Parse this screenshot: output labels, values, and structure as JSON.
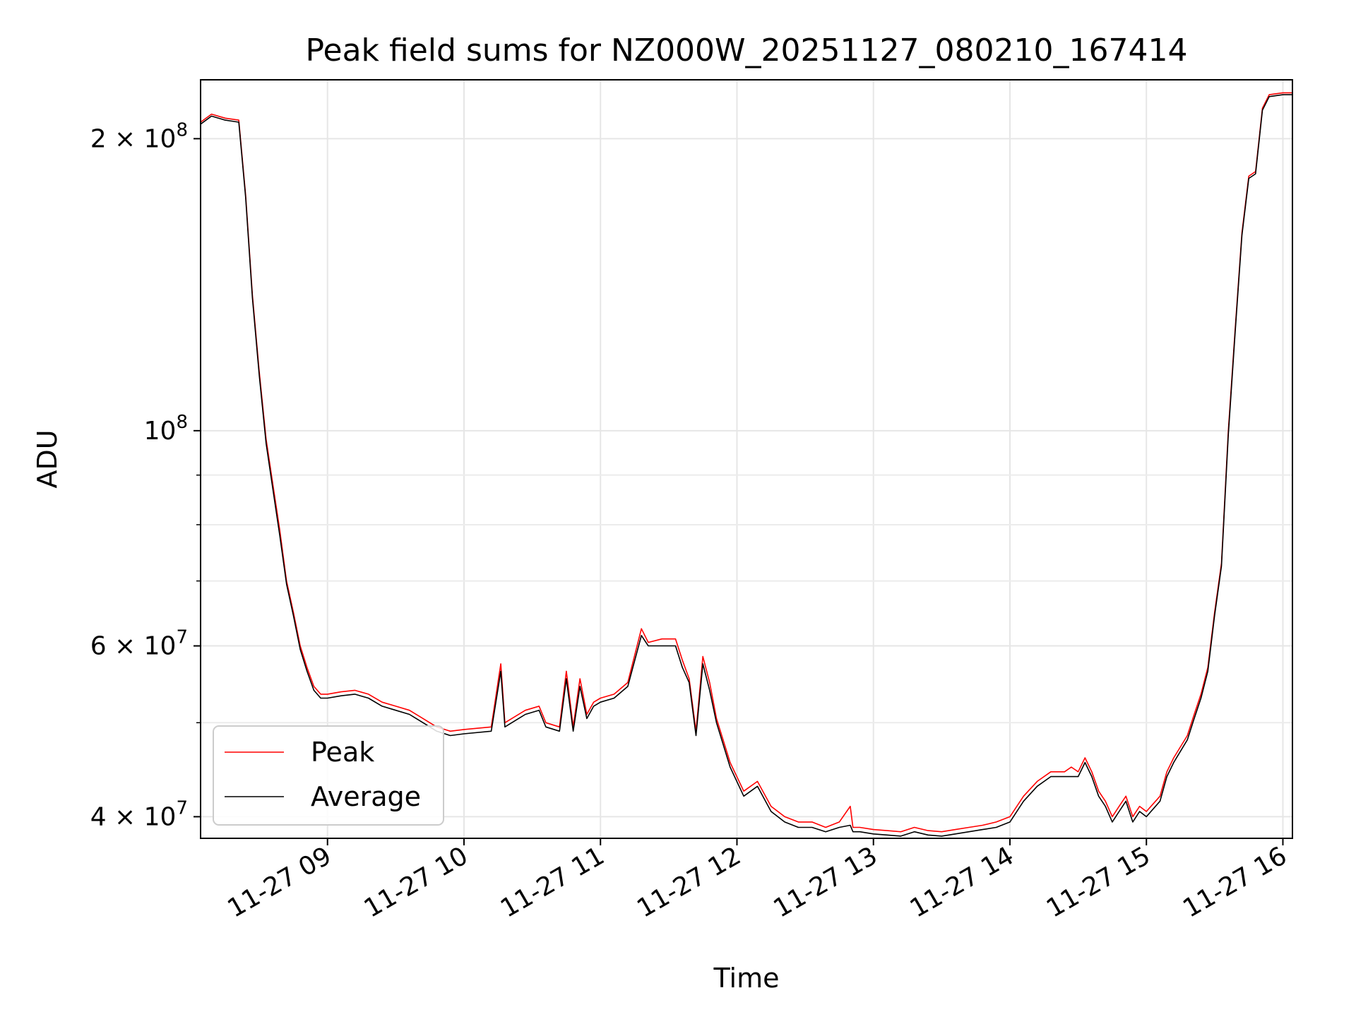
{
  "chart_data": {
    "type": "line",
    "title": "Peak field sums for NZ000W_20251127_080210_167414",
    "xlabel": "Time",
    "ylabel": "ADU",
    "yscale": "log",
    "xlim": [
      8.07,
      16.07
    ],
    "ylim": [
      38000000,
      230000000
    ],
    "grid": true,
    "legend_position": "lower-left",
    "x_ticks": [
      {
        "value": 9,
        "label": "11-27 09"
      },
      {
        "value": 10,
        "label": "11-27 10"
      },
      {
        "value": 11,
        "label": "11-27 11"
      },
      {
        "value": 12,
        "label": "11-27 12"
      },
      {
        "value": 13,
        "label": "11-27 13"
      },
      {
        "value": 14,
        "label": "11-27 14"
      },
      {
        "value": 15,
        "label": "11-27 15"
      },
      {
        "value": 16,
        "label": "11-27 16"
      }
    ],
    "y_major_ticks": [
      {
        "value": 40000000,
        "mantissa": "4",
        "exp": "7"
      },
      {
        "value": 60000000,
        "mantissa": "6",
        "exp": "7"
      },
      {
        "value": 100000000,
        "mantissa": "",
        "exp": "8"
      },
      {
        "value": 200000000,
        "mantissa": "2",
        "exp": "8"
      }
    ],
    "y_minor_ticks": [
      50000000,
      70000000,
      80000000,
      90000000
    ],
    "series": [
      {
        "name": "Peak",
        "color": "#ff0000",
        "x": [
          8.07,
          8.15,
          8.25,
          8.35,
          8.4,
          8.45,
          8.5,
          8.55,
          8.6,
          8.65,
          8.7,
          8.75,
          8.8,
          8.85,
          8.9,
          8.95,
          9.0,
          9.1,
          9.2,
          9.3,
          9.4,
          9.5,
          9.6,
          9.7,
          9.8,
          9.9,
          10.0,
          10.2,
          10.27,
          10.3,
          10.35,
          10.45,
          10.55,
          10.6,
          10.7,
          10.75,
          10.8,
          10.85,
          10.9,
          10.95,
          11.0,
          11.1,
          11.2,
          11.3,
          11.35,
          11.45,
          11.55,
          11.6,
          11.65,
          11.7,
          11.75,
          11.8,
          11.85,
          11.95,
          12.05,
          12.15,
          12.25,
          12.35,
          12.45,
          12.55,
          12.65,
          12.75,
          12.83,
          12.85,
          12.9,
          13.0,
          13.1,
          13.2,
          13.3,
          13.4,
          13.5,
          13.6,
          13.7,
          13.8,
          13.9,
          14.0,
          14.1,
          14.2,
          14.3,
          14.4,
          14.45,
          14.5,
          14.55,
          14.6,
          14.65,
          14.7,
          14.75,
          14.8,
          14.85,
          14.9,
          14.95,
          15.0,
          15.1,
          15.15,
          15.2,
          15.3,
          15.35,
          15.4,
          15.45,
          15.5,
          15.55,
          15.6,
          15.65,
          15.7,
          15.75,
          15.8,
          15.85,
          15.9,
          16.0,
          16.07
        ],
        "values": [
          208000000,
          212000000,
          210000000,
          209000000,
          175000000,
          138000000,
          115000000,
          98000000,
          88000000,
          79000000,
          70000000,
          65000000,
          60000000,
          57000000,
          54500000,
          53500000,
          53500000,
          53800000,
          54000000,
          53500000,
          52500000,
          52000000,
          51500000,
          50500000,
          49500000,
          49000000,
          49200000,
          49500000,
          57500000,
          50000000,
          50500000,
          51500000,
          52000000,
          50000000,
          49500000,
          56500000,
          49500000,
          55500000,
          51000000,
          52500000,
          53000000,
          53500000,
          55000000,
          62500000,
          60500000,
          61000000,
          61000000,
          58000000,
          55500000,
          49000000,
          58500000,
          55000000,
          50500000,
          45500000,
          42500000,
          43500000,
          41000000,
          40000000,
          39500000,
          39500000,
          39000000,
          39500000,
          41000000,
          39000000,
          39000000,
          38800000,
          38700000,
          38600000,
          39000000,
          38700000,
          38600000,
          38800000,
          39000000,
          39200000,
          39500000,
          40000000,
          42000000,
          43500000,
          44500000,
          44500000,
          45000000,
          44500000,
          46000000,
          44500000,
          42500000,
          41500000,
          40000000,
          41000000,
          42000000,
          40000000,
          41000000,
          40500000,
          42000000,
          44500000,
          46000000,
          48500000,
          51000000,
          53500000,
          57000000,
          65000000,
          73000000,
          100000000,
          127000000,
          160000000,
          183000000,
          185000000,
          215000000,
          222000000,
          223000000,
          223000000
        ]
      },
      {
        "name": "Average",
        "color": "#000000",
        "x": [
          8.07,
          8.15,
          8.25,
          8.35,
          8.4,
          8.45,
          8.5,
          8.55,
          8.6,
          8.65,
          8.7,
          8.75,
          8.8,
          8.85,
          8.9,
          8.95,
          9.0,
          9.1,
          9.2,
          9.3,
          9.4,
          9.5,
          9.6,
          9.7,
          9.8,
          9.9,
          10.0,
          10.2,
          10.27,
          10.3,
          10.35,
          10.45,
          10.55,
          10.6,
          10.7,
          10.75,
          10.8,
          10.85,
          10.9,
          10.95,
          11.0,
          11.1,
          11.2,
          11.3,
          11.35,
          11.45,
          11.55,
          11.6,
          11.65,
          11.7,
          11.75,
          11.8,
          11.85,
          11.95,
          12.05,
          12.15,
          12.25,
          12.35,
          12.45,
          12.55,
          12.65,
          12.75,
          12.83,
          12.85,
          12.9,
          13.0,
          13.1,
          13.2,
          13.3,
          13.4,
          13.5,
          13.6,
          13.7,
          13.8,
          13.9,
          14.0,
          14.1,
          14.2,
          14.3,
          14.4,
          14.45,
          14.5,
          14.55,
          14.6,
          14.65,
          14.7,
          14.75,
          14.8,
          14.85,
          14.9,
          14.95,
          15.0,
          15.1,
          15.15,
          15.2,
          15.3,
          15.35,
          15.4,
          15.45,
          15.5,
          15.55,
          15.6,
          15.65,
          15.7,
          15.75,
          15.8,
          15.85,
          15.9,
          16.0,
          16.07
        ],
        "values": [
          207000000,
          211000000,
          209000000,
          208000000,
          174000000,
          137000000,
          114000000,
          97000000,
          87000000,
          78000000,
          69500000,
          64500000,
          59500000,
          56500000,
          54000000,
          53000000,
          53000000,
          53300000,
          53500000,
          53000000,
          52000000,
          51500000,
          51000000,
          50000000,
          49000000,
          48500000,
          48700000,
          49000000,
          56500000,
          49500000,
          50000000,
          51000000,
          51500000,
          49500000,
          49000000,
          55500000,
          49000000,
          54500000,
          50500000,
          52000000,
          52500000,
          53000000,
          54500000,
          61500000,
          60000000,
          60000000,
          60000000,
          57000000,
          55000000,
          48500000,
          57500000,
          54000000,
          50000000,
          45000000,
          42000000,
          43000000,
          40500000,
          39500000,
          39000000,
          39000000,
          38600000,
          39000000,
          39200000,
          38600000,
          38600000,
          38400000,
          38300000,
          38200000,
          38600000,
          38300000,
          38200000,
          38400000,
          38600000,
          38800000,
          39000000,
          39500000,
          41500000,
          43000000,
          44000000,
          44000000,
          44000000,
          44000000,
          45500000,
          44000000,
          42000000,
          41000000,
          39500000,
          40500000,
          41500000,
          39500000,
          40500000,
          40000000,
          41500000,
          44000000,
          45500000,
          48000000,
          50500000,
          53000000,
          56500000,
          64500000,
          72500000,
          99000000,
          126000000,
          159000000,
          182000000,
          184000000,
          214000000,
          221000000,
          222000000,
          222000000
        ]
      }
    ]
  }
}
